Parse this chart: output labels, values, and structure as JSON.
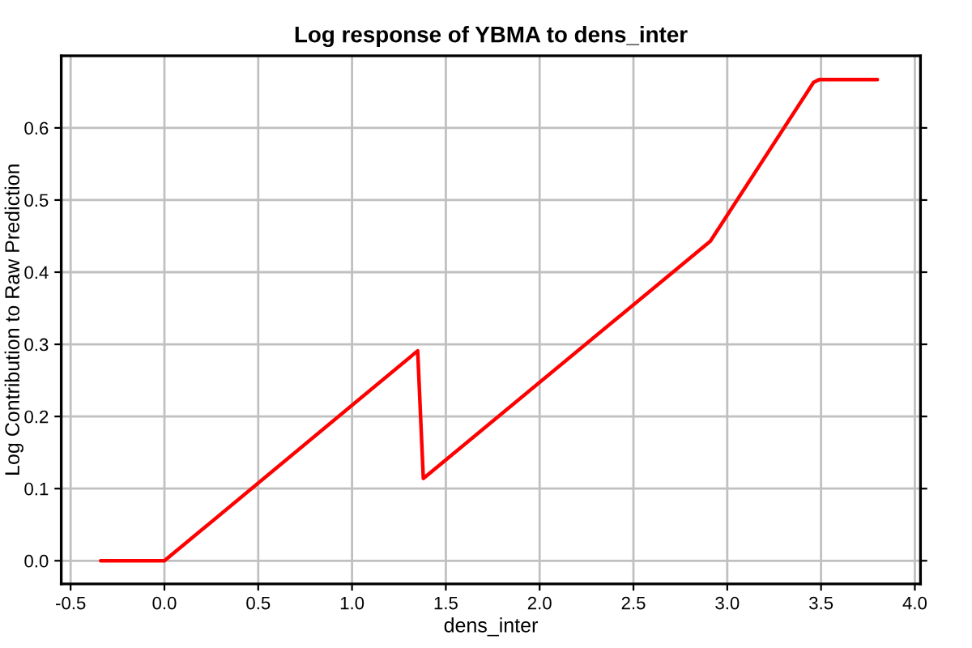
{
  "chart_data": {
    "type": "line",
    "title": "Log response of YBMA to dens_inter",
    "xlabel": "dens_inter",
    "ylabel": "Log Contribution to Raw Prediction",
    "series": [
      {
        "color": "#ff0000",
        "x": [
          -0.34,
          0.0,
          1.35,
          1.38,
          2.91,
          3.46,
          3.49,
          3.8
        ],
        "values": [
          0.0,
          0.0,
          0.291,
          0.114,
          0.443,
          0.663,
          0.667,
          0.667
        ]
      }
    ],
    "xlim": [
      -0.55,
      4.03
    ],
    "ylim": [
      -0.032,
      0.7
    ],
    "xticks": [
      {
        "value": -0.5,
        "label": "-0.5"
      },
      {
        "value": 0,
        "label": "0.0"
      },
      {
        "value": 0.5,
        "label": "0.5"
      },
      {
        "value": 1,
        "label": "1.0"
      },
      {
        "value": 1.5,
        "label": "1.5"
      },
      {
        "value": 2,
        "label": "2.0"
      },
      {
        "value": 2.5,
        "label": "2.5"
      },
      {
        "value": 3,
        "label": "3.0"
      },
      {
        "value": 3.5,
        "label": "3.5"
      },
      {
        "value": 4,
        "label": "4.0"
      }
    ],
    "yticks": [
      {
        "value": 0,
        "label": "0.0"
      },
      {
        "value": 0.1,
        "label": "0.1"
      },
      {
        "value": 0.2,
        "label": "0.2"
      },
      {
        "value": 0.3,
        "label": "0.3"
      },
      {
        "value": 0.4,
        "label": "0.4"
      },
      {
        "value": 0.5,
        "label": "0.5"
      },
      {
        "value": 0.6,
        "label": "0.6"
      }
    ],
    "grid": true,
    "line_style": "solid"
  }
}
